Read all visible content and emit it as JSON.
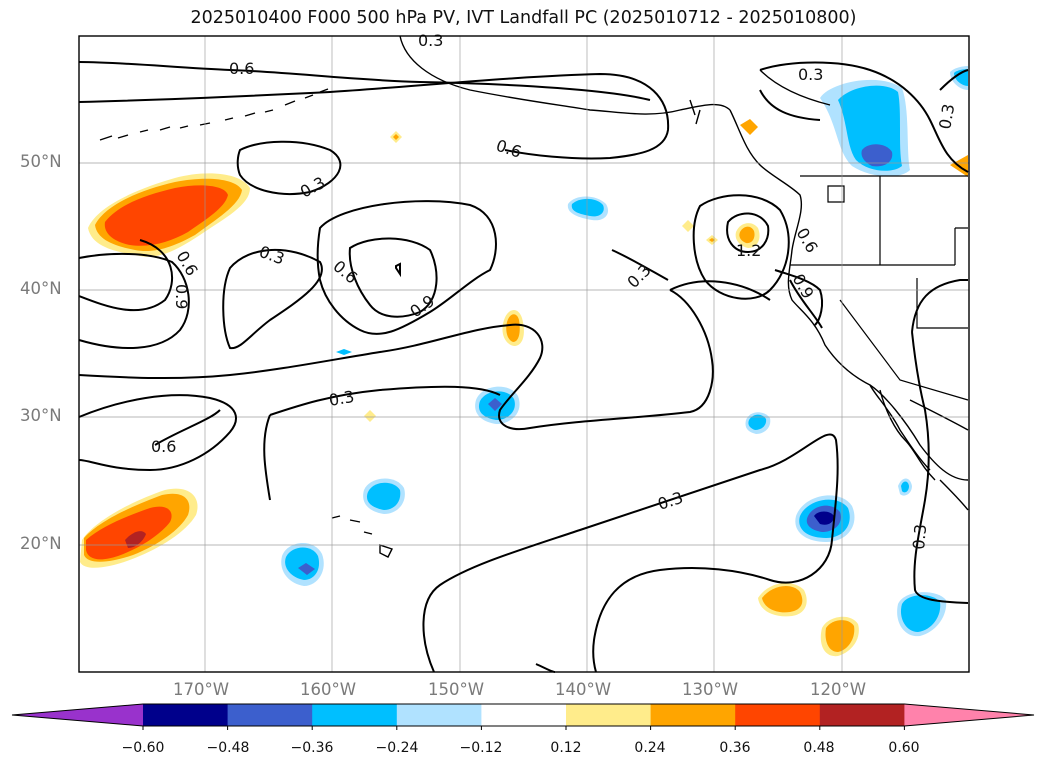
{
  "title": "2025010400 F000 500 hPa PV, IVT Landfall PC (2025010712 - 2025010800)",
  "lat_labels": [
    "50°N",
    "40°N",
    "30°N",
    "20°N"
  ],
  "lon_labels": [
    "170°W",
    "160°W",
    "150°W",
    "140°W",
    "130°W",
    "120°W"
  ],
  "contour_labels": [
    "0.6",
    "0.6",
    "0.3",
    "0.3",
    "0.6",
    "0.9",
    "0.6",
    "0.9",
    "0.3",
    "0.6",
    "0.3",
    "0.3",
    "1.2",
    "0.6",
    "0.9",
    "0.3",
    "0.3",
    "0.3",
    "0.3"
  ],
  "colorbar": {
    "ticks": [
      "−0.60",
      "−0.48",
      "−0.36",
      "−0.24",
      "−0.12",
      "0.12",
      "0.24",
      "0.36",
      "0.48",
      "0.60"
    ],
    "colors": [
      "#9932cc",
      "#00008b",
      "#3c5fcd",
      "#00bfff",
      "#b0e2ff",
      "#ffffff",
      "#ffec8b",
      "#ffa500",
      "#ff4500",
      "#b22222",
      "#ff82ab"
    ]
  },
  "map_extent": {
    "lon": [
      -180,
      -110
    ],
    "lat": [
      10,
      60
    ]
  }
}
